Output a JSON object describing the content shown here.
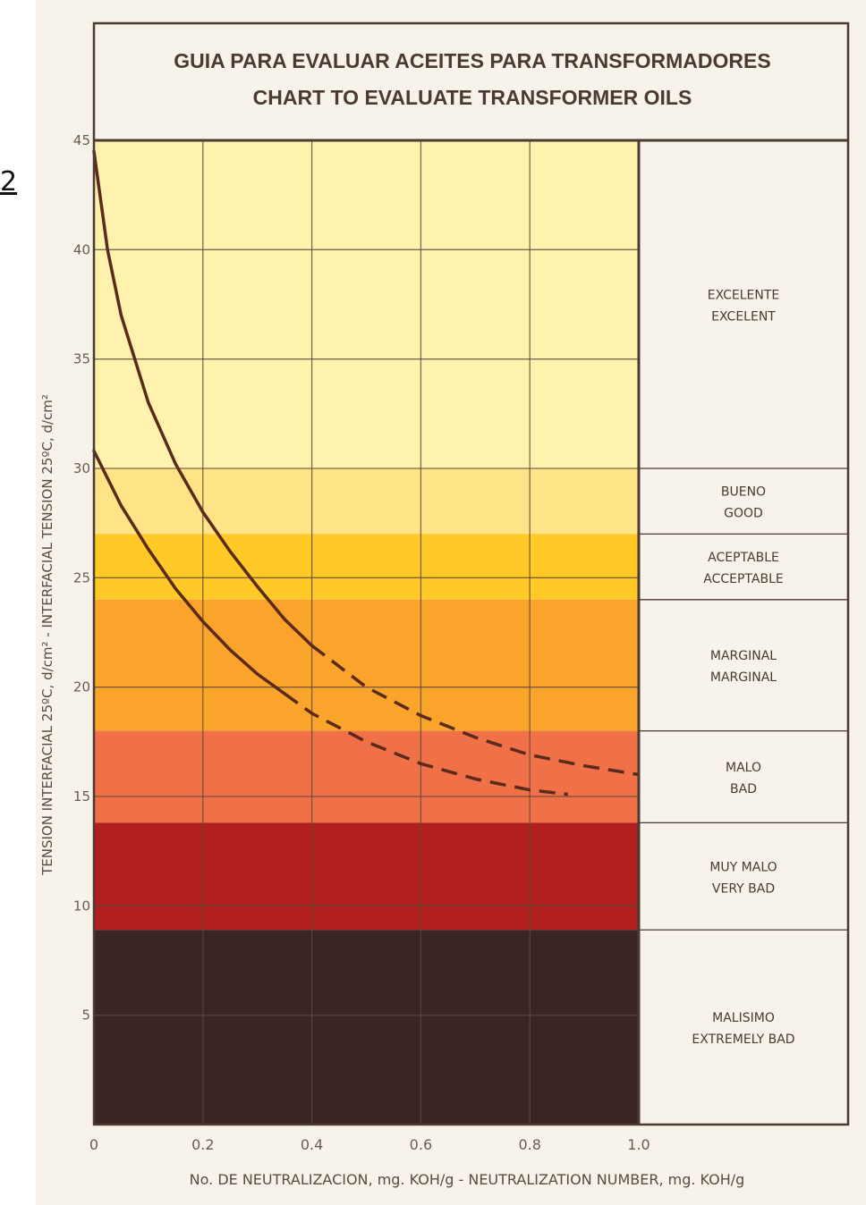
{
  "page_number": "2",
  "colors": {
    "paper": "#f7f3ea",
    "frame": "#4a3a30",
    "curve": "#5a2a1a",
    "zone_excelent": "#fff2ad",
    "zone_good": "#ffe487",
    "zone_acceptable": "#ffc928",
    "zone_marginal": "#fba42b",
    "zone_bad": "#f07048",
    "zone_very_bad": "#b21f1f",
    "zone_extremely_bad": "#3a2524",
    "label_text": "#4a3a30"
  },
  "chart_data": {
    "type": "line",
    "title": "GUIA PARA EVALUAR ACEITES PARA TRANSFORMADORES",
    "subtitle": "CHART TO EVALUATE TRANSFORMER OILS",
    "xlabel": "No. DE NEUTRALIZACION, mg. KOH/g - NEUTRALIZATION NUMBER, mg. KOH/g",
    "ylabel": "TENSION INTERFACIAL 25ºC, d/cm² - INTERFACIAL TENSION 25ºC, d/cm²",
    "xlim": [
      0,
      1.0
    ],
    "ylim": [
      0,
      45
    ],
    "grid": true,
    "x_ticks": [
      "0",
      "0.2",
      "0.4",
      "0.6",
      "0.8",
      "1.0"
    ],
    "x_tick_values": [
      0,
      0.2,
      0.4,
      0.6,
      0.8,
      1.0
    ],
    "y_ticks": [
      "5",
      "10",
      "15",
      "20",
      "25",
      "30",
      "35",
      "40",
      "45"
    ],
    "y_tick_values": [
      5,
      10,
      15,
      20,
      25,
      30,
      35,
      40,
      45
    ],
    "zones": [
      {
        "name": "EXCELENTE",
        "name_en": "EXCELENT",
        "y_min": 30,
        "y_max": 45,
        "color_key": "zone_excelent"
      },
      {
        "name": "BUENO",
        "name_en": "GOOD",
        "y_min": 27,
        "y_max": 30,
        "color_key": "zone_good"
      },
      {
        "name": "ACEPTABLE",
        "name_en": "ACCEPTABLE",
        "y_min": 24,
        "y_max": 27,
        "color_key": "zone_acceptable"
      },
      {
        "name": "MARGINAL",
        "name_en": "MARGINAL",
        "y_min": 18,
        "y_max": 24,
        "color_key": "zone_marginal"
      },
      {
        "name": "MALO",
        "name_en": "BAD",
        "y_min": 13.8,
        "y_max": 18,
        "color_key": "zone_bad"
      },
      {
        "name": "MUY MALO",
        "name_en": "VERY BAD",
        "y_min": 8.9,
        "y_max": 13.8,
        "color_key": "zone_very_bad"
      },
      {
        "name": "MALISIMO",
        "name_en": "EXTREMELY BAD",
        "y_min": 0,
        "y_max": 8.9,
        "color_key": "zone_extremely_bad"
      }
    ],
    "series": [
      {
        "solid": {
          "x": [
            0,
            0.025,
            0.05,
            0.1,
            0.15,
            0.2,
            0.25,
            0.3,
            0.35,
            0.4
          ],
          "y": [
            44.5,
            40,
            37,
            33,
            30.2,
            28,
            26.2,
            24.6,
            23.1,
            21.9
          ]
        },
        "dashed": {
          "x": [
            0.4,
            0.5,
            0.6,
            0.7,
            0.8,
            0.9,
            1.0
          ],
          "y": [
            21.9,
            20,
            18.7,
            17.7,
            16.9,
            16.4,
            16
          ]
        }
      },
      {
        "solid": {
          "x": [
            0,
            0.05,
            0.1,
            0.15,
            0.2,
            0.25,
            0.3,
            0.35
          ],
          "y": [
            30.8,
            28.3,
            26.3,
            24.5,
            23,
            21.7,
            20.6,
            19.7
          ]
        },
        "dashed": {
          "x": [
            0.35,
            0.4,
            0.5,
            0.6,
            0.7,
            0.8,
            0.87
          ],
          "y": [
            19.7,
            18.8,
            17.5,
            16.5,
            15.8,
            15.3,
            15.1
          ]
        }
      }
    ]
  }
}
